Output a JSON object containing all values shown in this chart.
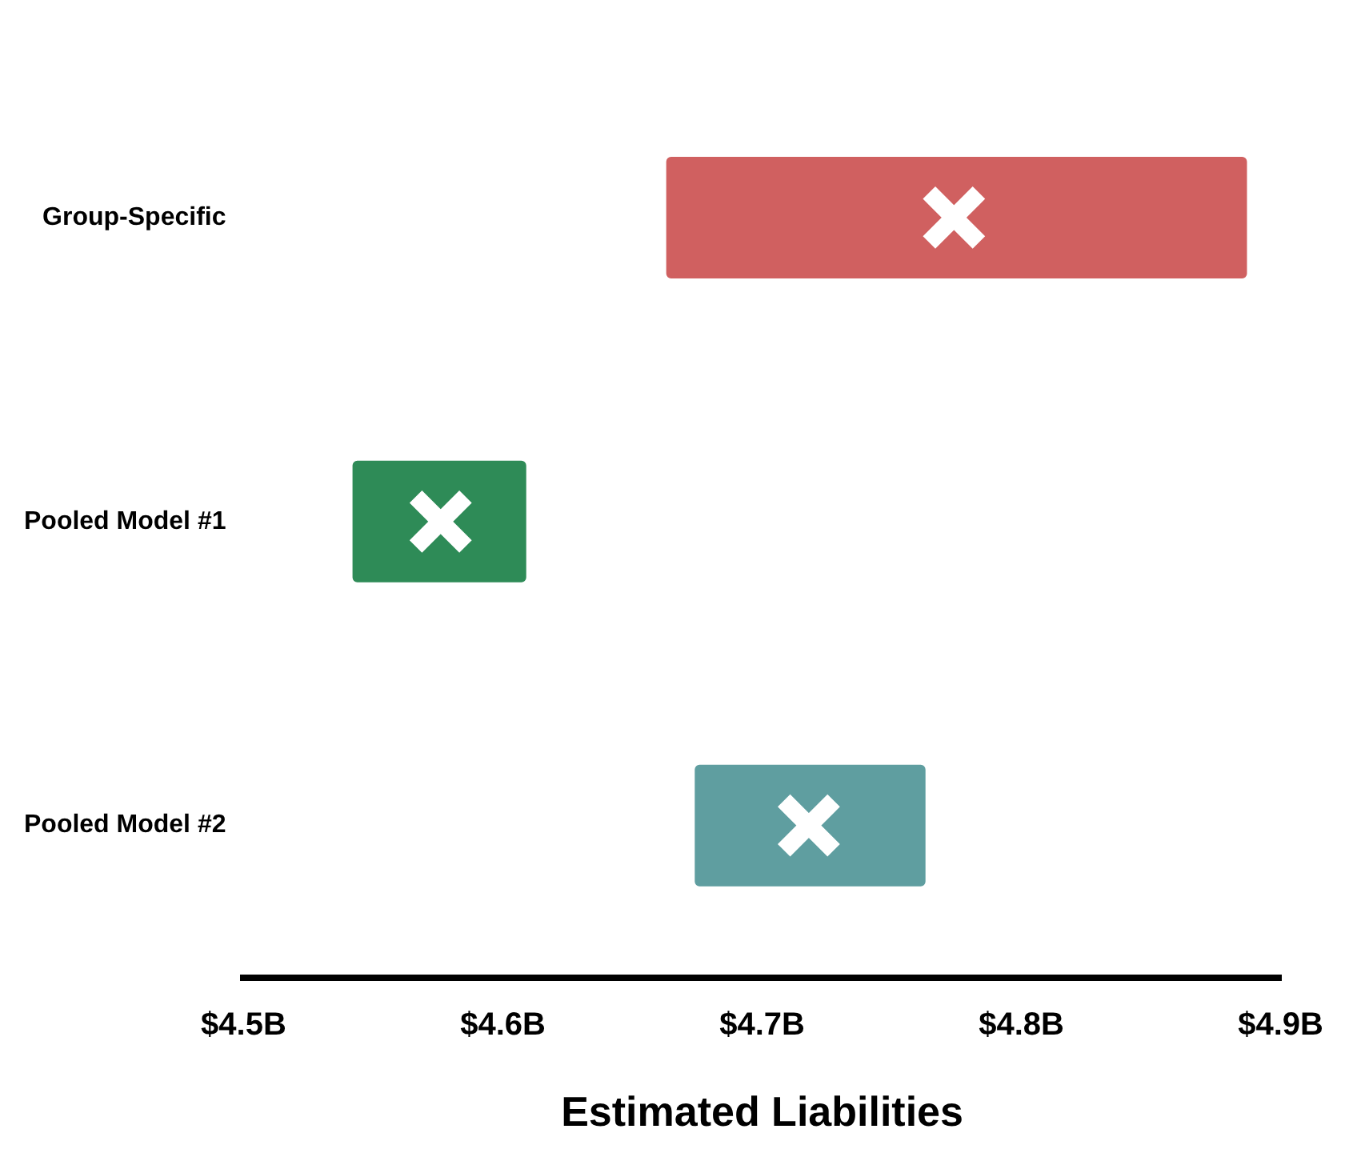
{
  "chart_data": {
    "type": "bar",
    "orientation": "horizontal",
    "xlabel": "Estimated Liabilities",
    "categories": [
      "Group-Specific",
      "Pooled Model #1",
      "Pooled Model #2"
    ],
    "series": [
      {
        "type": "bar",
        "base": [
          4.663,
          4.542,
          4.674
        ],
        "values": [
          0.224,
          0.067,
          0.089
        ],
        "colors": [
          "#d06060",
          "#2e8b57",
          "#5f9ea0"
        ]
      },
      {
        "type": "scatter",
        "marker": "cross",
        "values": [
          4.774,
          4.576,
          4.718
        ],
        "colors": [
          "#ffffff",
          "#ffffff",
          "#ffffff"
        ]
      }
    ],
    "xlim": [
      4.5,
      4.9
    ],
    "xticks": [
      {
        "value": 4.5,
        "label": "$4.5B"
      },
      {
        "value": 4.6,
        "label": "$4.6B"
      },
      {
        "value": 4.7,
        "label": "$4.7B"
      },
      {
        "value": 4.8,
        "label": "$4.8B"
      },
      {
        "value": 4.9,
        "label": "$4.9B"
      }
    ],
    "grid": false
  }
}
